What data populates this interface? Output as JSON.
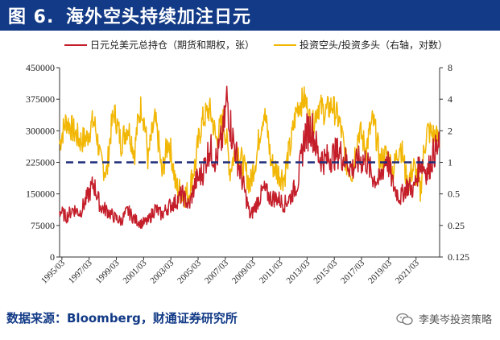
{
  "header": {
    "figure_label": "图 6.",
    "title": "海外空头持续加注日元"
  },
  "source_text": "数据来源：Bloomberg，财通证券研究所",
  "watermark_text": "李美岑投资策略",
  "colors": {
    "title_bg": "#123a86",
    "series_red": "#c41e2a",
    "series_gold": "#f2b705",
    "ref_line": "#1f2d7a"
  },
  "chart_data": {
    "type": "line",
    "title": "海外空头持续加注日元",
    "legend_position": "top",
    "x_tick_labels": [
      "1995/03",
      "1997/03",
      "1999/03",
      "2001/03",
      "2003/03",
      "2005/03",
      "2007/03",
      "2009/03",
      "2011/03",
      "2013/03",
      "2015/03",
      "2017/03",
      "2019/03",
      "2021/03"
    ],
    "x_range": [
      1995.0,
      2022.9
    ],
    "left_axis": {
      "ticks": [
        0,
        75000,
        150000,
        225000,
        300000,
        375000,
        450000
      ],
      "tick_labels": [
        "0",
        "75000",
        "150000",
        "225000",
        "300000",
        "375000",
        "450000"
      ],
      "range": [
        0,
        450000
      ]
    },
    "right_axis": {
      "scale": "log2",
      "ticks": [
        0.125,
        0.25,
        0.5,
        1,
        2,
        4,
        8
      ],
      "tick_labels": [
        "0.125",
        "0.25",
        "0.5",
        "1",
        "2",
        "4",
        "8"
      ],
      "range": [
        0.125,
        8
      ]
    },
    "reference_line": {
      "axis": "right",
      "value": 1,
      "style": "dashed"
    },
    "series": [
      {
        "name": "日元兑美元总持仓（期货和期权，张）",
        "axis": "left",
        "color": "#c41e2a",
        "x": [
          1995.0,
          1995.5,
          1996.0,
          1996.5,
          1997.0,
          1997.5,
          1998.0,
          1998.5,
          1999.0,
          1999.5,
          2000.0,
          2000.5,
          2001.0,
          2001.5,
          2002.0,
          2002.5,
          2003.0,
          2003.5,
          2004.0,
          2004.5,
          2005.0,
          2005.5,
          2006.0,
          2006.5,
          2007.0,
          2007.3,
          2007.6,
          2008.0,
          2008.5,
          2009.0,
          2009.5,
          2010.0,
          2010.5,
          2011.0,
          2011.5,
          2012.0,
          2012.5,
          2013.0,
          2013.5,
          2014.0,
          2014.5,
          2015.0,
          2015.5,
          2016.0,
          2016.5,
          2017.0,
          2017.5,
          2018.0,
          2018.5,
          2019.0,
          2019.5,
          2020.0,
          2020.5,
          2021.0,
          2021.5,
          2022.0,
          2022.5,
          2022.9
        ],
        "values": [
          110000,
          95000,
          115000,
          105000,
          140000,
          175000,
          120000,
          110000,
          95000,
          85000,
          110000,
          90000,
          80000,
          85000,
          115000,
          100000,
          120000,
          130000,
          150000,
          120000,
          180000,
          200000,
          260000,
          230000,
          290000,
          380000,
          300000,
          240000,
          170000,
          95000,
          130000,
          160000,
          140000,
          140000,
          125000,
          145000,
          180000,
          290000,
          310000,
          240000,
          230000,
          240000,
          250000,
          230000,
          210000,
          230000,
          230000,
          190000,
          180000,
          240000,
          170000,
          140000,
          170000,
          160000,
          230000,
          200000,
          250000,
          260000
        ]
      },
      {
        "name": "投资空头/投资多头（右轴，对数）",
        "axis": "right",
        "color": "#f2b705",
        "x": [
          1995.0,
          1995.5,
          1996.0,
          1996.5,
          1997.0,
          1997.5,
          1998.0,
          1998.5,
          1999.0,
          1999.5,
          2000.0,
          2000.5,
          2001.0,
          2001.5,
          2002.0,
          2002.5,
          2003.0,
          2003.5,
          2004.0,
          2004.5,
          2005.0,
          2005.5,
          2006.0,
          2006.5,
          2007.0,
          2007.5,
          2008.0,
          2008.5,
          2009.0,
          2009.5,
          2010.0,
          2010.5,
          2011.0,
          2011.5,
          2012.0,
          2012.5,
          2013.0,
          2013.5,
          2014.0,
          2014.5,
          2015.0,
          2015.5,
          2016.0,
          2016.5,
          2017.0,
          2017.5,
          2018.0,
          2018.5,
          2019.0,
          2019.5,
          2020.0,
          2020.5,
          2021.0,
          2021.5,
          2022.0,
          2022.5,
          2022.9
        ],
        "values": [
          1.5,
          2.5,
          2.0,
          1.6,
          1.7,
          2.5,
          1.0,
          0.8,
          3.0,
          1.5,
          2.2,
          1.2,
          3.5,
          1.0,
          2.5,
          0.7,
          1.6,
          0.6,
          0.5,
          0.5,
          1.0,
          2.5,
          3.2,
          1.6,
          2.5,
          0.8,
          1.4,
          0.9,
          0.6,
          1.2,
          3.0,
          1.0,
          0.8,
          0.7,
          1.5,
          3.5,
          4.0,
          2.0,
          3.5,
          3.0,
          3.5,
          2.5,
          1.0,
          0.8,
          2.0,
          1.3,
          2.5,
          1.0,
          1.2,
          0.8,
          1.5,
          0.6,
          0.9,
          0.5,
          2.0,
          1.8,
          1.6
        ]
      }
    ]
  }
}
